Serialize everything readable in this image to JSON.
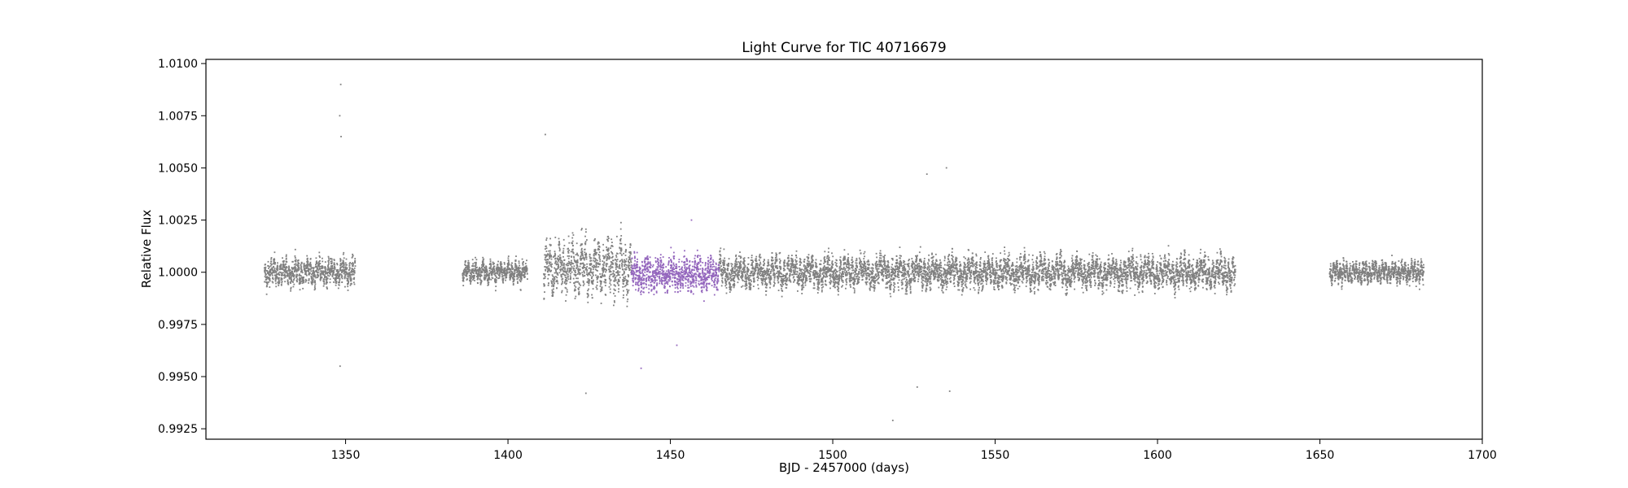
{
  "chart_data": {
    "type": "scatter",
    "title": "Light Curve for TIC 40716679",
    "xlabel": "BJD - 2457000 (days)",
    "ylabel": "Relative Flux",
    "xlim": [
      1307,
      1700
    ],
    "ylim": [
      0.992,
      1.0102
    ],
    "x_ticks": [
      1350,
      1400,
      1450,
      1500,
      1550,
      1600,
      1650,
      1700
    ],
    "y_ticks": [
      0.9925,
      0.995,
      0.9975,
      1.0,
      1.0025,
      1.005,
      1.0075,
      1.01
    ],
    "x_tick_labels": [
      "1350",
      "1400",
      "1450",
      "1500",
      "1550",
      "1600",
      "1650",
      "1700"
    ],
    "y_tick_labels": [
      "0.9925",
      "0.9950",
      "0.9975",
      "1.0000",
      "1.0025",
      "1.0050",
      "1.0075",
      "1.0100"
    ],
    "grid": false,
    "series": [
      {
        "color": "#808080",
        "segments": [
          {
            "x_start": 1325,
            "x_end": 1353,
            "baseline": 1.0,
            "amplitude": 0.001
          },
          {
            "x_start": 1386,
            "x_end": 1406,
            "baseline": 1.0,
            "amplitude": 0.0008
          },
          {
            "x_start": 1411,
            "x_end": 1438,
            "baseline": 1.0002,
            "amplitude": 0.002
          },
          {
            "x_start": 1465,
            "x_end": 1624,
            "baseline": 1.0,
            "amplitude": 0.0012
          },
          {
            "x_start": 1653,
            "x_end": 1682,
            "baseline": 1.0,
            "amplitude": 0.0008
          }
        ],
        "outliers": [
          {
            "x": 1348.5,
            "y": 1.009
          },
          {
            "x": 1348.2,
            "y": 1.0075
          },
          {
            "x": 1348.6,
            "y": 1.0065
          },
          {
            "x": 1348.3,
            "y": 0.9955
          },
          {
            "x": 1411.5,
            "y": 1.0066
          },
          {
            "x": 1424.0,
            "y": 0.9942
          },
          {
            "x": 1518.5,
            "y": 0.9929
          },
          {
            "x": 1526.0,
            "y": 0.9945
          },
          {
            "x": 1535.0,
            "y": 1.005
          },
          {
            "x": 1536.0,
            "y": 0.9943
          },
          {
            "x": 1529.0,
            "y": 1.0047
          }
        ]
      },
      {
        "color": "#9467bd",
        "segments": [
          {
            "x_start": 1438,
            "x_end": 1465,
            "baseline": 0.9999,
            "amplitude": 0.0012
          }
        ],
        "outliers": [
          {
            "x": 1441.0,
            "y": 0.9954
          },
          {
            "x": 1452.0,
            "y": 0.9965
          },
          {
            "x": 1456.5,
            "y": 1.0025
          }
        ]
      }
    ]
  }
}
